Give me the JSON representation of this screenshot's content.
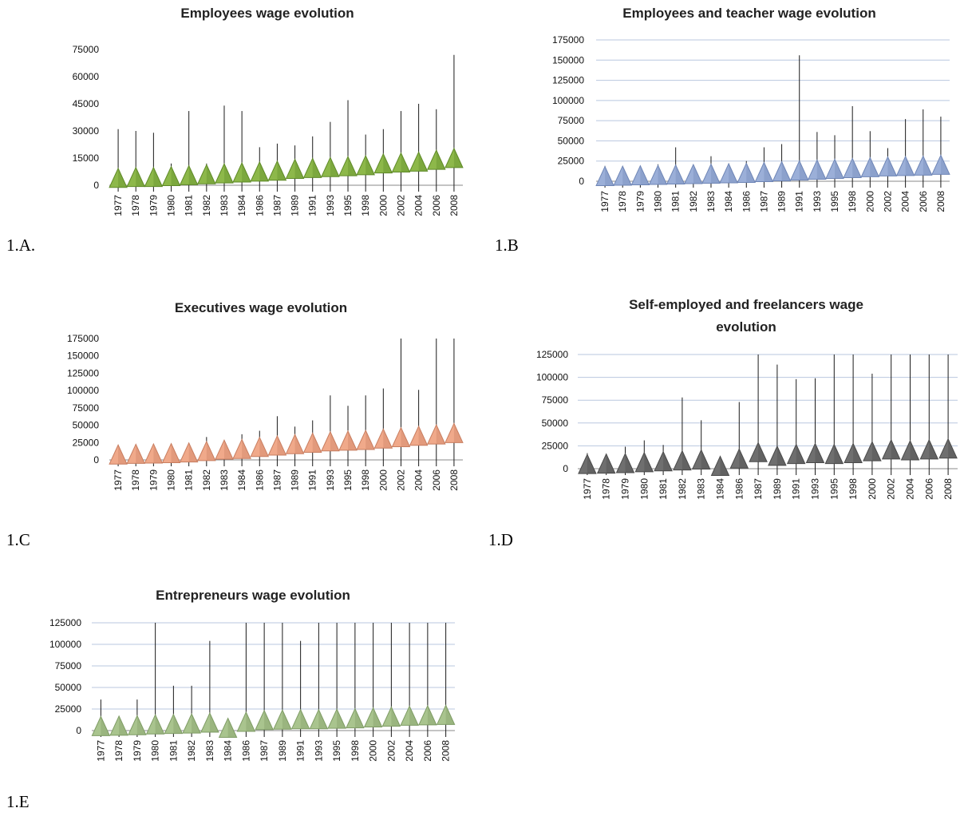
{
  "panel_labels": {
    "a": "1.A.",
    "b": "1.B",
    "c": "1.C",
    "d": "1.D",
    "e": "1.E"
  },
  "chart_data": [
    {
      "type": "stock",
      "title": "Employees  wage evolution",
      "color": "#8db84a",
      "dark": "#5f8a28",
      "grid": false,
      "ylim": [
        0,
        75000
      ],
      "yticks": [
        0,
        15000,
        30000,
        45000,
        60000,
        75000
      ],
      "categories": [
        "1977",
        "1978",
        "1979",
        "1980",
        "1981",
        "1982",
        "1983",
        "1984",
        "1986",
        "1987",
        "1989",
        "1991",
        "1993",
        "1995",
        "1998",
        "2000",
        "2002",
        "2004",
        "2006",
        "2008"
      ],
      "high": [
        31000,
        30000,
        29000,
        12000,
        41000,
        12000,
        44000,
        41000,
        21000,
        23000,
        22000,
        27000,
        35000,
        47000,
        28000,
        31000,
        41000,
        45000,
        42000,
        72000
      ],
      "low": [
        0,
        0,
        0,
        0,
        0,
        0,
        0,
        0,
        0,
        0,
        0,
        0,
        0,
        0,
        0,
        0,
        0,
        0,
        0,
        0
      ],
      "mid": [
        3000,
        3500,
        3500,
        4000,
        4500,
        5000,
        5500,
        6000,
        6500,
        7000,
        8000,
        8500,
        9000,
        9500,
        10000,
        11000,
        11500,
        12000,
        13000,
        14000
      ]
    },
    {
      "type": "stock",
      "title": "Employees and teacher wage evolution",
      "color": "#9bafd8",
      "dark": "#6f86b6",
      "grid": true,
      "ylim": [
        0,
        175000
      ],
      "yticks": [
        0,
        25000,
        50000,
        75000,
        100000,
        125000,
        150000,
        175000
      ],
      "categories": [
        "1977",
        "1978",
        "1979",
        "1980",
        "1981",
        "1982",
        "1983",
        "1984",
        "1986",
        "1987",
        "1989",
        "1991",
        "1993",
        "1995",
        "1998",
        "2000",
        "2002",
        "2004",
        "2006",
        "2008"
      ],
      "high": [
        19000,
        12000,
        13000,
        21000,
        42000,
        16000,
        31000,
        22000,
        25000,
        42000,
        46000,
        156000,
        61000,
        57000,
        93000,
        62000,
        41000,
        77000,
        89000,
        80000
      ],
      "low": [
        0,
        0,
        0,
        0,
        0,
        0,
        0,
        0,
        0,
        0,
        0,
        0,
        0,
        0,
        0,
        0,
        0,
        0,
        0,
        0
      ],
      "mid": [
        4000,
        4500,
        5000,
        5500,
        6000,
        6500,
        7000,
        7500,
        8000,
        9000,
        10000,
        11000,
        12000,
        13000,
        14000,
        15000,
        16000,
        16500,
        17000,
        18000
      ]
    },
    {
      "type": "stock",
      "title": "Executives wage evolution",
      "color": "#f0a98a",
      "dark": "#c87e60",
      "grid": false,
      "ylim": [
        0,
        175000
      ],
      "yticks": [
        0,
        25000,
        50000,
        75000,
        100000,
        125000,
        150000,
        175000
      ],
      "categories": [
        "1977",
        "1978",
        "1979",
        "1980",
        "1981",
        "1982",
        "1983",
        "1984",
        "1986",
        "1987",
        "1989",
        "1991",
        "1993",
        "1995",
        "1998",
        "2000",
        "2002",
        "2004",
        "2006",
        "2008"
      ],
      "high": [
        7000,
        8000,
        9000,
        10000,
        11000,
        33000,
        27000,
        37000,
        42000,
        63000,
        48000,
        57000,
        93000,
        78000,
        93000,
        103000,
        175000,
        101000,
        180000,
        180000
      ],
      "low": [
        0,
        0,
        0,
        0,
        0,
        0,
        0,
        0,
        0,
        0,
        0,
        0,
        0,
        0,
        0,
        0,
        0,
        0,
        0,
        0
      ],
      "mid": [
        5000,
        6000,
        6500,
        7000,
        8000,
        10000,
        12000,
        13000,
        16000,
        18000,
        20000,
        22000,
        24000,
        25000,
        26000,
        28000,
        30000,
        32000,
        34000,
        36000
      ]
    },
    {
      "type": "stock",
      "title": "Self-employed and freelancers wage evolution",
      "title_lines": [
        "Self-employed and freelancers wage",
        "evolution"
      ],
      "color": "#6f6f6f",
      "dark": "#4a4a4a",
      "grid": true,
      "ylim": [
        0,
        125000
      ],
      "yticks": [
        0,
        25000,
        50000,
        75000,
        100000,
        125000
      ],
      "categories": [
        "1977",
        "1978",
        "1979",
        "1980",
        "1981",
        "1982",
        "1983",
        "1984",
        "1986",
        "1987",
        "1989",
        "1991",
        "1993",
        "1995",
        "1998",
        "2000",
        "2002",
        "2004",
        "2006",
        "2008"
      ],
      "high": [
        17000,
        15000,
        24000,
        31000,
        26000,
        78000,
        53000,
        0,
        73000,
        125000,
        114000,
        98000,
        99000,
        125000,
        125000,
        104000,
        125000,
        125000,
        125000,
        125000
      ],
      "low": [
        0,
        0,
        0,
        0,
        0,
        0,
        0,
        0,
        0,
        0,
        0,
        0,
        0,
        0,
        0,
        0,
        0,
        0,
        0,
        0
      ],
      "mid": [
        3000,
        3500,
        4000,
        5000,
        6000,
        7000,
        8000,
        1000,
        9000,
        16000,
        12000,
        14000,
        15000,
        14000,
        15000,
        17000,
        19000,
        18000,
        19000,
        20000
      ]
    },
    {
      "type": "stock",
      "title": "Entrepreneurs wage evolution",
      "color": "#a9c48e",
      "dark": "#7f9c65",
      "grid": true,
      "ylim": [
        0,
        125000
      ],
      "yticks": [
        0,
        25000,
        50000,
        75000,
        100000,
        125000
      ],
      "categories": [
        "1977",
        "1978",
        "1979",
        "1980",
        "1981",
        "1982",
        "1983",
        "1984",
        "1986",
        "1987",
        "1989",
        "1991",
        "1993",
        "1995",
        "1998",
        "2000",
        "2002",
        "2004",
        "2006",
        "2008"
      ],
      "high": [
        36000,
        16000,
        36000,
        125000,
        52000,
        52000,
        104000,
        0,
        125000,
        125000,
        125000,
        104000,
        125000,
        125000,
        125000,
        125000,
        125000,
        125000,
        125000,
        125000
      ],
      "low": [
        0,
        0,
        0,
        0,
        0,
        0,
        0,
        0,
        0,
        0,
        0,
        0,
        0,
        0,
        0,
        0,
        0,
        0,
        0,
        0
      ],
      "mid": [
        3000,
        3500,
        4000,
        5000,
        5500,
        6000,
        7000,
        1000,
        8000,
        10000,
        10500,
        11000,
        11000,
        11500,
        12000,
        13000,
        14000,
        15000,
        15500,
        16000
      ]
    }
  ]
}
